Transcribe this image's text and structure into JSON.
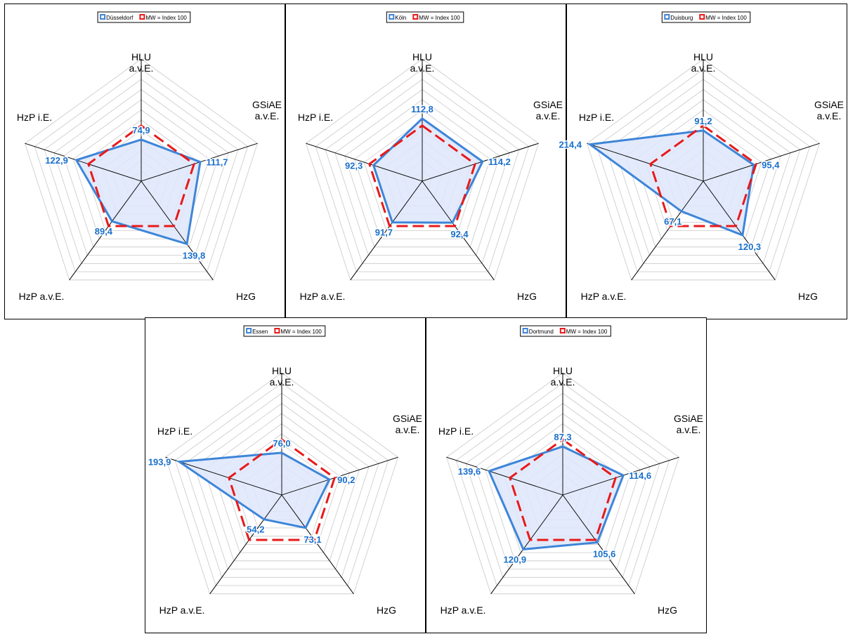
{
  "chart_data": [
    {
      "type": "radar",
      "axes": [
        "HLU a.v.E.",
        "GSiAE a.v.E.",
        "HzG",
        "HzP a.v.E.",
        "HzP i.E."
      ],
      "series": [
        {
          "name": "Düsseldorf",
          "values": [
            74.9,
            111.7,
            139.8,
            89.4,
            122.9
          ],
          "value_labels": [
            "74,9",
            "111,7",
            "139,8",
            "89,4",
            "122,9"
          ]
        },
        {
          "name": "MW = Index 100",
          "values": [
            100,
            100,
            100,
            100,
            100
          ]
        }
      ],
      "rlim": [
        0,
        220
      ]
    },
    {
      "type": "radar",
      "axes": [
        "HLU a.v.E.",
        "GSiAE a.v.E.",
        "HzG",
        "HzP a.v.E.",
        "HzP i.E."
      ],
      "series": [
        {
          "name": "Köln",
          "values": [
            112.8,
            114.2,
            92.4,
            91.7,
            92.3
          ],
          "value_labels": [
            "112,8",
            "114,2",
            "92,4",
            "91,7",
            "92,3"
          ]
        },
        {
          "name": "MW = Index 100",
          "values": [
            100,
            100,
            100,
            100,
            100
          ]
        }
      ],
      "rlim": [
        0,
        220
      ]
    },
    {
      "type": "radar",
      "axes": [
        "HLU a.v.E.",
        "GSiAE a.v.E.",
        "HzG",
        "HzP a.v.E.",
        "HzP i.E."
      ],
      "series": [
        {
          "name": "Duisburg",
          "values": [
            91.2,
            95.4,
            120.3,
            67.1,
            214.4
          ],
          "value_labels": [
            "91,2",
            "95,4",
            "120,3",
            "67,1",
            "214,4"
          ]
        },
        {
          "name": "MW = Index 100",
          "values": [
            100,
            100,
            100,
            100,
            100
          ]
        }
      ],
      "rlim": [
        0,
        220
      ]
    },
    {
      "type": "radar",
      "axes": [
        "HLU a.v.E.",
        "GSiAE a.v.E.",
        "HzG",
        "HzP a.v.E.",
        "HzP i.E."
      ],
      "series": [
        {
          "name": "Essen",
          "values": [
            76.0,
            90.2,
            73.1,
            54.2,
            193.9
          ],
          "value_labels": [
            "76,0",
            "90,2",
            "73,1",
            "54,2",
            "193,9"
          ]
        },
        {
          "name": "MW = Index 100",
          "values": [
            100,
            100,
            100,
            100,
            100
          ]
        }
      ],
      "rlim": [
        0,
        220
      ]
    },
    {
      "type": "radar",
      "axes": [
        "HLU a.v.E.",
        "GSiAE a.v.E.",
        "HzG",
        "HzP a.v.E.",
        "HzP i.E."
      ],
      "series": [
        {
          "name": "Dortmund",
          "values": [
            87.3,
            114.6,
            105.6,
            120.9,
            139.6
          ],
          "value_labels": [
            "87,3",
            "114,6",
            "105,6",
            "120,9",
            "139,6"
          ]
        },
        {
          "name": "MW = Index 100",
          "values": [
            100,
            100,
            100,
            100,
            100
          ]
        }
      ],
      "rlim": [
        0,
        220
      ]
    }
  ],
  "axis_labels": [
    [
      "HLU",
      "a.v.E."
    ],
    [
      "GSiAE",
      "a.v.E."
    ],
    [
      "HzG"
    ],
    [
      "HzP a.v.E."
    ],
    [
      "HzP i.E."
    ]
  ],
  "colors": {
    "city_line": "#3d85d8",
    "city_fill": "#dde6fb",
    "city_label": "#1a6fcb",
    "mean_line": "#e81a1a",
    "grid": "#c8c8c8",
    "spoke": "#000000"
  }
}
